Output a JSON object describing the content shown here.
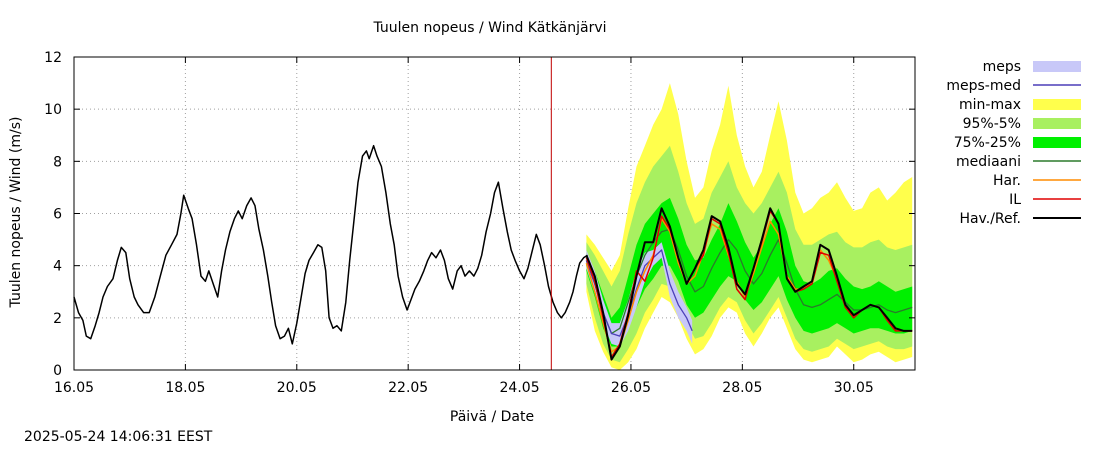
{
  "chart_data": {
    "type": "line",
    "title": "Tuulen nopeus / Wind  Kätkänjärvi",
    "xlabel": "Päivä / Date",
    "ylabel": "Tuulen nopeus / Wind (m/s)",
    "xlim": [
      16.0,
      31.1
    ],
    "ylim": [
      0,
      12
    ],
    "grid": true,
    "x_ticks": [
      16,
      18,
      20,
      22,
      24,
      26,
      28,
      30
    ],
    "x_tick_labels": [
      "16.05",
      "18.05",
      "20.05",
      "22.05",
      "24.05",
      "26.05",
      "28.05",
      "30.05"
    ],
    "y_ticks": [
      0,
      2,
      4,
      6,
      8,
      10,
      12
    ],
    "y_tick_labels": [
      "0",
      "2",
      "4",
      "6",
      "8",
      "10",
      "12"
    ],
    "now_marker_day": 24.57,
    "legend": [
      {
        "label": "meps",
        "style": "band",
        "color": "#c8c8f8"
      },
      {
        "label": "meps-med",
        "style": "line",
        "color": "#4b3fb8"
      },
      {
        "label": "min-max",
        "style": "band",
        "color": "#ffff4c"
      },
      {
        "label": "95%-5%",
        "style": "band",
        "color": "#a8f060"
      },
      {
        "label": "75%-25%",
        "style": "band",
        "color": "#00f000"
      },
      {
        "label": "mediaani",
        "style": "line",
        "color": "#2b7a2b"
      },
      {
        "label": "Har.",
        "style": "line",
        "color": "#ff8c00"
      },
      {
        "label": "IL",
        "style": "line",
        "color": "#e00000"
      },
      {
        "label": "Hav./Ref.",
        "style": "line",
        "color": "#000000"
      }
    ],
    "observed": {
      "name": "Hav./Ref.",
      "points": [
        [
          16.0,
          2.8
        ],
        [
          16.08,
          2.2
        ],
        [
          16.16,
          1.9
        ],
        [
          16.22,
          1.3
        ],
        [
          16.3,
          1.2
        ],
        [
          16.38,
          1.7
        ],
        [
          16.45,
          2.2
        ],
        [
          16.52,
          2.8
        ],
        [
          16.6,
          3.2
        ],
        [
          16.7,
          3.5
        ],
        [
          16.78,
          4.2
        ],
        [
          16.85,
          4.7
        ],
        [
          16.93,
          4.5
        ],
        [
          17.0,
          3.5
        ],
        [
          17.08,
          2.8
        ],
        [
          17.15,
          2.5
        ],
        [
          17.25,
          2.2
        ],
        [
          17.35,
          2.2
        ],
        [
          17.45,
          2.8
        ],
        [
          17.55,
          3.6
        ],
        [
          17.65,
          4.4
        ],
        [
          17.75,
          4.8
        ],
        [
          17.85,
          5.2
        ],
        [
          17.92,
          6.0
        ],
        [
          17.97,
          6.7
        ],
        [
          18.05,
          6.2
        ],
        [
          18.12,
          5.8
        ],
        [
          18.2,
          4.8
        ],
        [
          18.28,
          3.6
        ],
        [
          18.36,
          3.4
        ],
        [
          18.42,
          3.8
        ],
        [
          18.5,
          3.3
        ],
        [
          18.58,
          2.8
        ],
        [
          18.65,
          3.8
        ],
        [
          18.72,
          4.6
        ],
        [
          18.8,
          5.3
        ],
        [
          18.88,
          5.8
        ],
        [
          18.95,
          6.1
        ],
        [
          19.02,
          5.8
        ],
        [
          19.1,
          6.3
        ],
        [
          19.18,
          6.6
        ],
        [
          19.25,
          6.3
        ],
        [
          19.32,
          5.4
        ],
        [
          19.4,
          4.6
        ],
        [
          19.48,
          3.6
        ],
        [
          19.55,
          2.6
        ],
        [
          19.62,
          1.7
        ],
        [
          19.7,
          1.2
        ],
        [
          19.78,
          1.3
        ],
        [
          19.85,
          1.6
        ],
        [
          19.92,
          1.0
        ],
        [
          20.0,
          1.8
        ],
        [
          20.08,
          2.8
        ],
        [
          20.15,
          3.7
        ],
        [
          20.22,
          4.2
        ],
        [
          20.3,
          4.5
        ],
        [
          20.38,
          4.8
        ],
        [
          20.45,
          4.7
        ],
        [
          20.52,
          3.8
        ],
        [
          20.58,
          2.0
        ],
        [
          20.65,
          1.6
        ],
        [
          20.72,
          1.7
        ],
        [
          20.8,
          1.5
        ],
        [
          20.88,
          2.6
        ],
        [
          20.95,
          4.2
        ],
        [
          21.02,
          5.6
        ],
        [
          21.1,
          7.2
        ],
        [
          21.18,
          8.2
        ],
        [
          21.25,
          8.4
        ],
        [
          21.3,
          8.1
        ],
        [
          21.38,
          8.6
        ],
        [
          21.44,
          8.2
        ],
        [
          21.52,
          7.8
        ],
        [
          21.6,
          6.8
        ],
        [
          21.68,
          5.6
        ],
        [
          21.75,
          4.8
        ],
        [
          21.82,
          3.6
        ],
        [
          21.9,
          2.8
        ],
        [
          21.98,
          2.3
        ],
        [
          22.05,
          2.7
        ],
        [
          22.12,
          3.1
        ],
        [
          22.2,
          3.4
        ],
        [
          22.28,
          3.8
        ],
        [
          22.35,
          4.2
        ],
        [
          22.42,
          4.5
        ],
        [
          22.5,
          4.3
        ],
        [
          22.58,
          4.6
        ],
        [
          22.65,
          4.2
        ],
        [
          22.72,
          3.5
        ],
        [
          22.8,
          3.1
        ],
        [
          22.88,
          3.8
        ],
        [
          22.95,
          4.0
        ],
        [
          23.02,
          3.6
        ],
        [
          23.1,
          3.8
        ],
        [
          23.18,
          3.6
        ],
        [
          23.25,
          3.9
        ],
        [
          23.32,
          4.4
        ],
        [
          23.4,
          5.3
        ],
        [
          23.48,
          6.0
        ],
        [
          23.55,
          6.8
        ],
        [
          23.62,
          7.2
        ],
        [
          23.7,
          6.2
        ],
        [
          23.78,
          5.3
        ],
        [
          23.85,
          4.6
        ],
        [
          23.92,
          4.2
        ],
        [
          24.0,
          3.8
        ],
        [
          24.08,
          3.5
        ],
        [
          24.15,
          3.9
        ],
        [
          24.22,
          4.5
        ],
        [
          24.3,
          5.2
        ],
        [
          24.37,
          4.8
        ],
        [
          24.45,
          4.0
        ],
        [
          24.52,
          3.2
        ],
        [
          24.6,
          2.6
        ],
        [
          24.68,
          2.2
        ],
        [
          24.75,
          2.0
        ],
        [
          24.82,
          2.2
        ],
        [
          24.9,
          2.6
        ],
        [
          24.96,
          3.0
        ],
        [
          25.02,
          3.6
        ],
        [
          25.08,
          4.1
        ],
        [
          25.15,
          4.3
        ],
        [
          25.22,
          4.4
        ]
      ]
    },
    "forecast": {
      "x": [
        25.2,
        25.35,
        25.5,
        25.65,
        25.8,
        25.95,
        26.1,
        26.25,
        26.4,
        26.55,
        26.7,
        26.85,
        27.0,
        27.15,
        27.3,
        27.45,
        27.6,
        27.75,
        27.9,
        28.05,
        28.2,
        28.35,
        28.5,
        28.65,
        28.8,
        28.95,
        29.1,
        29.25,
        29.4,
        29.55,
        29.7,
        29.85,
        30.0,
        30.15,
        30.3,
        30.45,
        30.6,
        30.75,
        30.9,
        31.05
      ],
      "min_max": {
        "lo": [
          3.0,
          1.5,
          0.7,
          0.1,
          0.0,
          0.3,
          0.8,
          1.6,
          2.2,
          2.8,
          2.6,
          2.0,
          1.2,
          0.6,
          0.8,
          1.3,
          2.0,
          2.4,
          2.2,
          1.4,
          0.9,
          1.4,
          2.0,
          2.4,
          1.6,
          0.8,
          0.4,
          0.3,
          0.4,
          0.5,
          0.9,
          0.6,
          0.3,
          0.4,
          0.6,
          0.7,
          0.5,
          0.3,
          0.4,
          0.5
        ],
        "hi": [
          5.2,
          4.8,
          4.3,
          3.8,
          4.4,
          6.2,
          7.8,
          8.6,
          9.4,
          10.0,
          11.0,
          9.8,
          8.0,
          6.6,
          7.0,
          8.4,
          9.4,
          10.9,
          9.0,
          7.8,
          7.0,
          7.6,
          9.0,
          10.3,
          8.8,
          6.8,
          6.0,
          6.2,
          6.6,
          6.8,
          7.2,
          6.6,
          6.1,
          6.2,
          6.8,
          7.0,
          6.5,
          6.8,
          7.2,
          7.4
        ]
      },
      "p95_p5": {
        "lo": [
          3.3,
          2.0,
          1.0,
          0.4,
          0.3,
          0.8,
          1.4,
          2.2,
          2.7,
          3.3,
          3.2,
          2.7,
          1.8,
          1.2,
          1.3,
          1.8,
          2.4,
          2.8,
          2.6,
          1.9,
          1.4,
          1.8,
          2.3,
          2.8,
          2.0,
          1.2,
          0.8,
          0.7,
          0.8,
          0.9,
          1.2,
          1.0,
          0.8,
          0.9,
          1.0,
          1.1,
          0.9,
          0.8,
          0.8,
          0.9
        ],
        "hi": [
          4.9,
          4.4,
          3.8,
          3.2,
          3.8,
          5.2,
          6.4,
          7.2,
          7.8,
          8.2,
          8.6,
          7.6,
          6.4,
          5.6,
          5.8,
          6.8,
          7.4,
          8.0,
          7.0,
          6.4,
          6.0,
          6.4,
          7.0,
          7.6,
          6.8,
          5.4,
          4.8,
          4.8,
          5.0,
          5.2,
          5.3,
          4.9,
          4.7,
          4.7,
          4.9,
          5.0,
          4.7,
          4.6,
          4.7,
          4.8
        ]
      },
      "p75_p25": {
        "lo": [
          3.8,
          2.8,
          1.6,
          0.9,
          0.9,
          1.6,
          2.4,
          3.1,
          3.5,
          4.0,
          4.0,
          3.4,
          2.5,
          2.0,
          2.2,
          2.7,
          3.2,
          3.6,
          3.4,
          2.7,
          2.3,
          2.6,
          3.1,
          3.6,
          2.7,
          2.0,
          1.5,
          1.4,
          1.5,
          1.6,
          1.8,
          1.6,
          1.4,
          1.5,
          1.6,
          1.6,
          1.5,
          1.4,
          1.4,
          1.5
        ],
        "hi": [
          4.5,
          3.8,
          2.9,
          2.0,
          2.4,
          3.6,
          4.8,
          5.6,
          6.0,
          6.4,
          6.6,
          5.8,
          4.8,
          4.2,
          4.3,
          5.0,
          5.6,
          6.4,
          5.7,
          4.9,
          4.3,
          4.8,
          5.6,
          6.2,
          5.3,
          4.0,
          3.4,
          3.3,
          3.5,
          3.8,
          3.9,
          3.5,
          3.2,
          3.1,
          3.2,
          3.4,
          3.2,
          3.0,
          3.1,
          3.2
        ]
      },
      "mediaani": [
        4.2,
        3.3,
        2.2,
        1.4,
        1.6,
        2.6,
        3.6,
        4.4,
        4.9,
        5.3,
        5.4,
        4.6,
        3.6,
        3.0,
        3.2,
        3.9,
        4.5,
        5.0,
        4.6,
        3.8,
        3.3,
        3.7,
        4.4,
        5.0,
        4.1,
        3.1,
        2.5,
        2.4,
        2.5,
        2.7,
        2.9,
        2.6,
        2.3,
        2.3,
        2.4,
        2.5,
        2.3,
        2.2,
        2.3,
        2.4
      ],
      "meps": {
        "lo": [
          3.9,
          2.9,
          1.8,
          1.0,
          0.9,
          1.5,
          2.4,
          3.4,
          4.0,
          4.3,
          2.8,
          2.0,
          1.5,
          1.0
        ],
        "hi": [
          4.6,
          3.8,
          2.7,
          1.8,
          1.8,
          2.7,
          3.8,
          4.5,
          4.6,
          4.9,
          3.8,
          3.0,
          2.4,
          1.9
        ],
        "x": [
          25.2,
          25.35,
          25.5,
          25.65,
          25.8,
          25.95,
          26.1,
          26.25,
          26.4,
          26.55,
          26.7,
          26.85,
          27.0,
          27.1
        ]
      },
      "meps_med": [
        4.2,
        3.3,
        2.2,
        1.4,
        1.3,
        2.1,
        3.1,
        4.0,
        4.3,
        4.6,
        3.3,
        2.5,
        2.0,
        1.5
      ],
      "har": [
        4.1,
        3.0,
        1.8,
        0.7,
        0.9,
        1.9,
        3.0,
        3.8,
        4.4,
        5.8,
        5.3,
        4.1,
        3.3,
        3.6,
        4.5,
        5.6,
        5.4,
        4.4,
        3.4,
        2.8,
        3.7,
        4.7,
        5.7,
        5.2,
        3.6,
        3.1,
        3.1,
        3.4,
        4.6,
        4.2,
        3.5,
        2.5,
        2.1,
        2.3,
        2.5,
        2.4,
        2.0,
        1.6,
        1.5,
        1.5
      ],
      "il": [
        4.3,
        3.4,
        2.0,
        0.5,
        1.0,
        2.2,
        3.8,
        3.4,
        4.3,
        5.9,
        5.4,
        4.3,
        3.3,
        3.9,
        4.4,
        5.8,
        5.6,
        4.5,
        3.1,
        2.7,
        3.9,
        4.9,
        6.1,
        5.6,
        3.5,
        3.0,
        3.1,
        3.3,
        4.5,
        4.4,
        3.4,
        2.4,
        2.0,
        2.3,
        2.5,
        2.4,
        1.9,
        1.5,
        1.5,
        1.5
      ],
      "hav_ref": [
        4.4,
        3.6,
        2.2,
        0.4,
        0.9,
        2.1,
        3.6,
        4.9,
        4.9,
        6.2,
        5.5,
        4.3,
        3.3,
        3.9,
        4.6,
        5.9,
        5.7,
        4.7,
        3.3,
        2.9,
        3.9,
        5.0,
        6.2,
        5.6,
        3.5,
        3.0,
        3.2,
        3.4,
        4.8,
        4.6,
        3.6,
        2.5,
        2.1,
        2.3,
        2.5,
        2.4,
        2.0,
        1.6,
        1.5,
        1.5
      ]
    }
  },
  "footer": {
    "timestamp": "2025-05-24 14:06:31 EEST"
  }
}
